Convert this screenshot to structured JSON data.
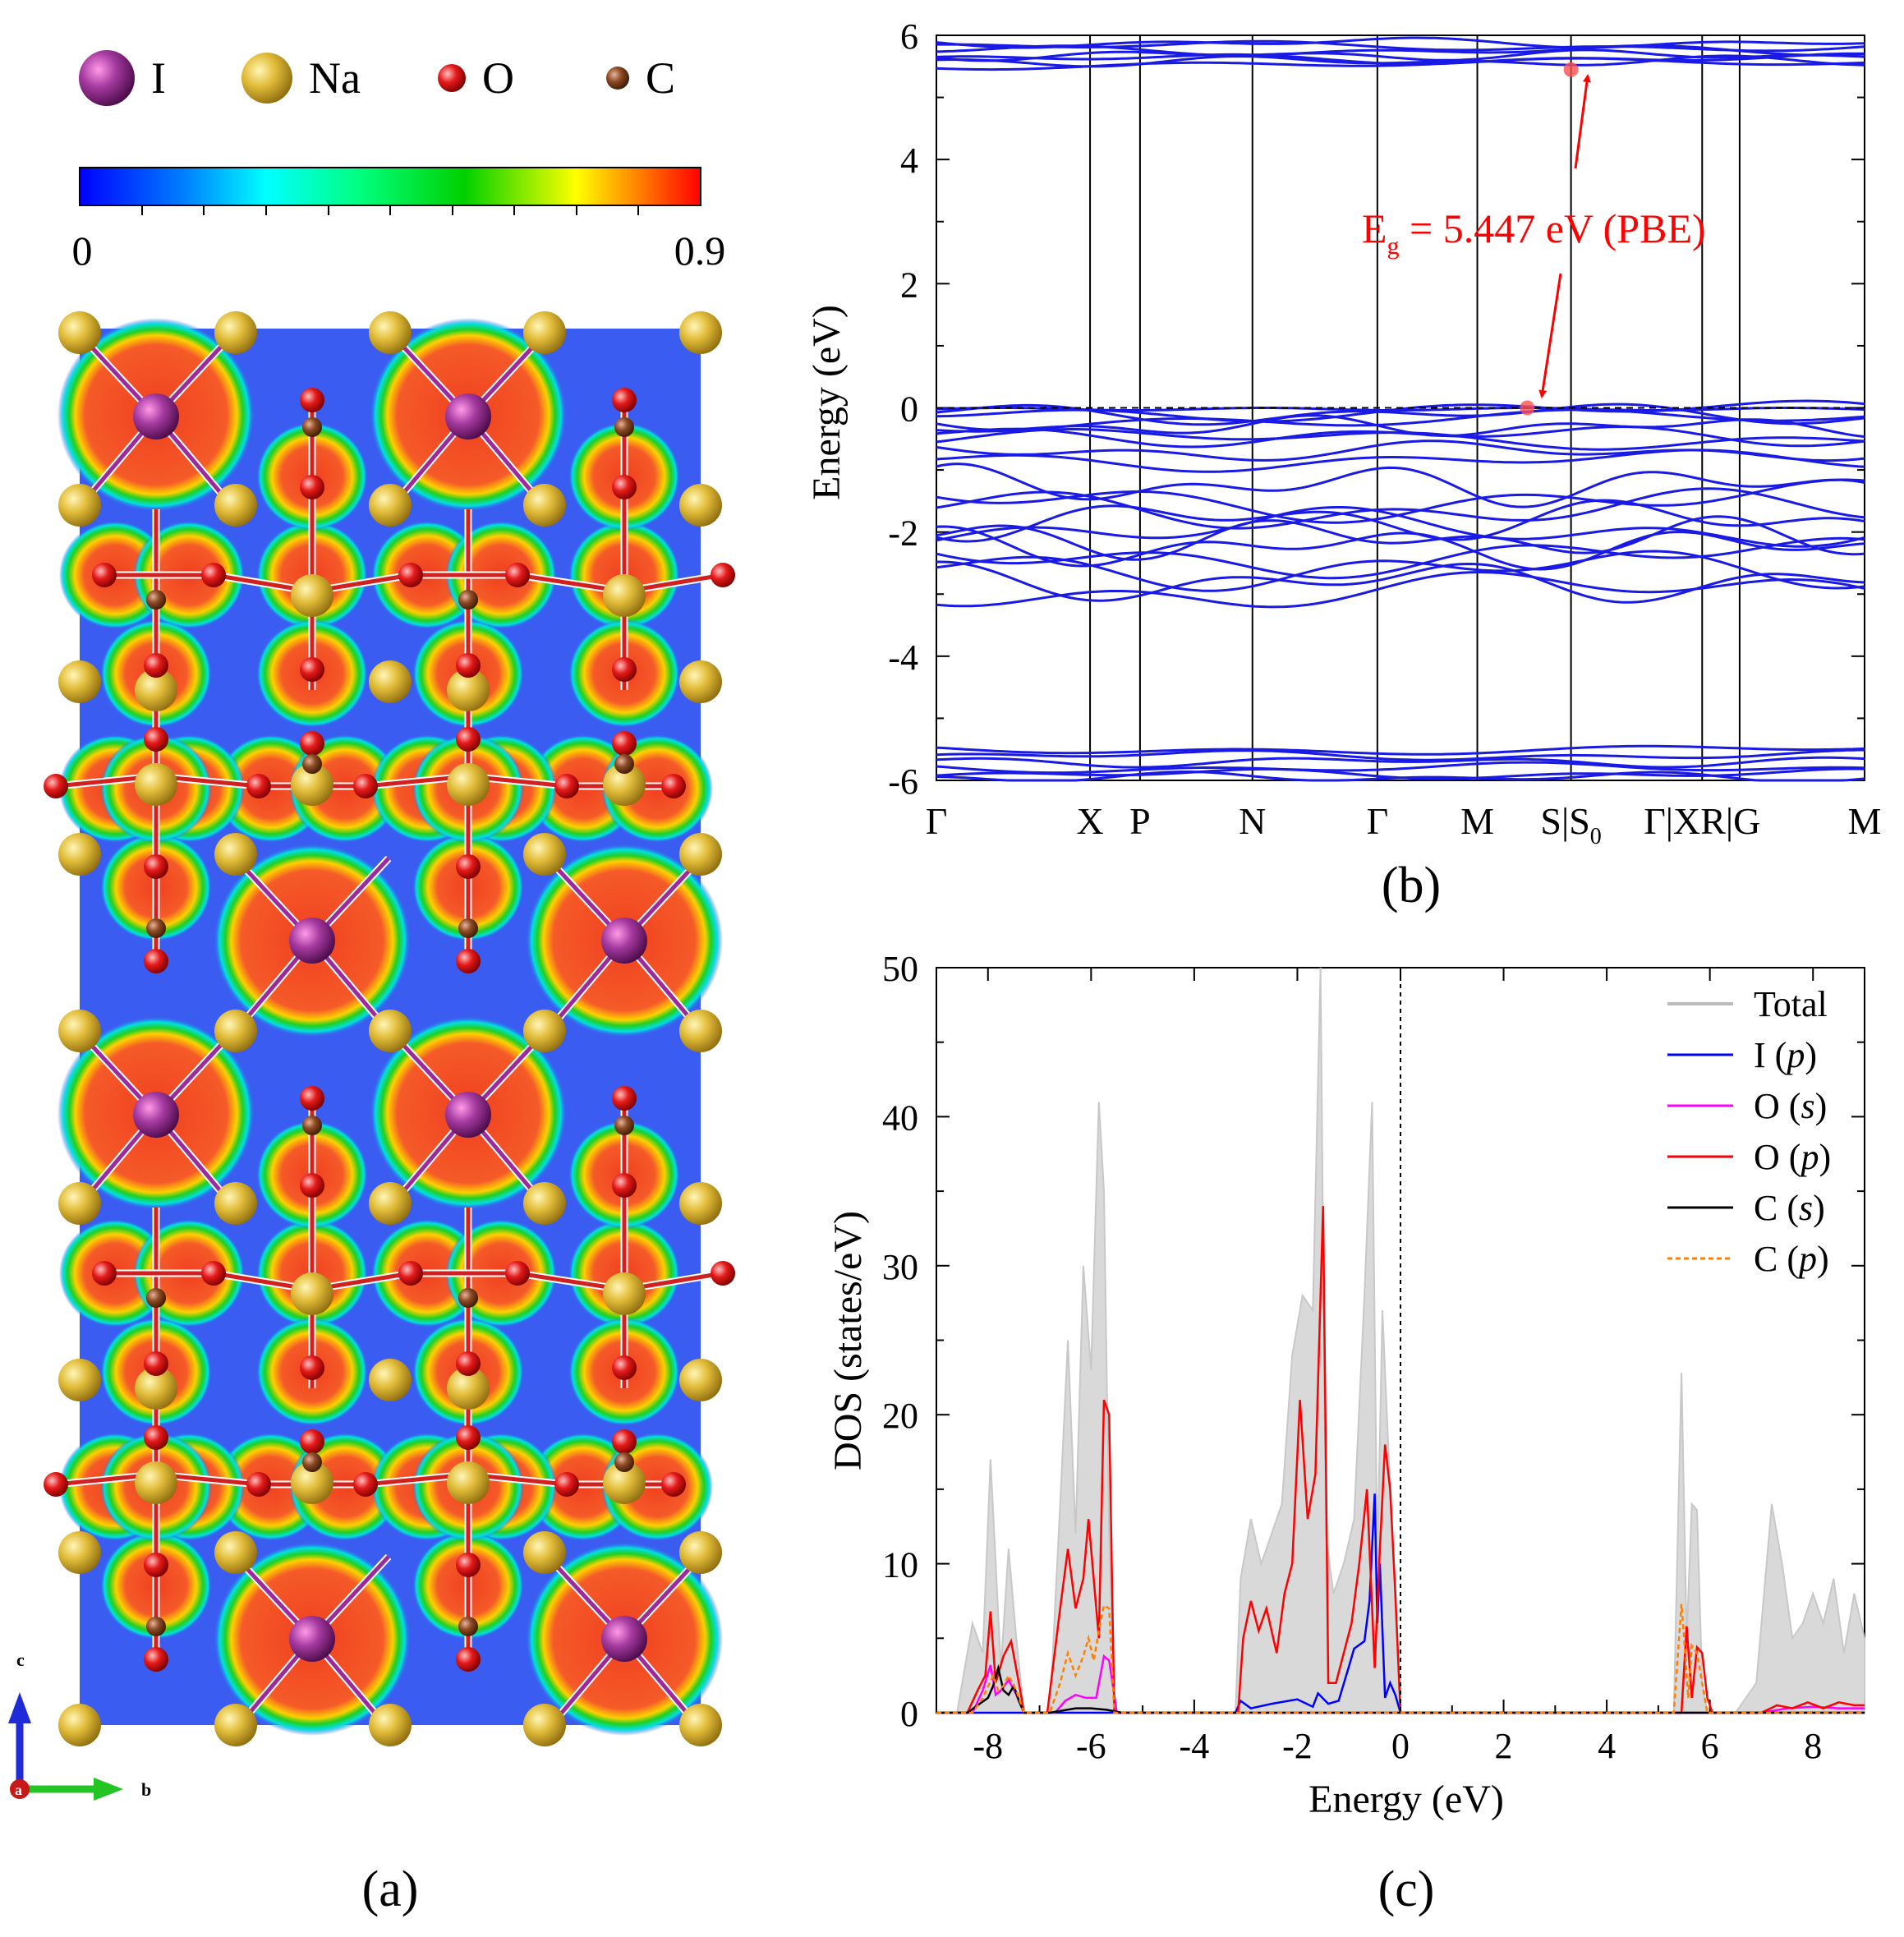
{
  "figure": {
    "panel_labels": [
      "(a)",
      "(b)",
      "(c)"
    ]
  },
  "panel_a": {
    "legend": [
      {
        "symbol": "I",
        "color": "#8e2a8e",
        "name": "iodine-atom-icon"
      },
      {
        "symbol": "Na",
        "color": "#e6bf3a",
        "name": "sodium-atom-icon"
      },
      {
        "symbol": "O",
        "color": "#e41b1b",
        "name": "oxygen-atom-icon"
      },
      {
        "symbol": "C",
        "color": "#8b4a24",
        "name": "carbon-atom-icon"
      }
    ],
    "colorbar": {
      "min_label": "0",
      "max_label": "0.9",
      "colors": [
        "#0000ff",
        "#0080ff",
        "#00ffff",
        "#00ff80",
        "#00d000",
        "#ffff00",
        "#ff8000",
        "#ff0000"
      ]
    },
    "axes": {
      "c_label": "c",
      "a_label": "a",
      "b_label": "b"
    },
    "map_colors": {
      "background": "#3a5cf0",
      "lobe_outer": "#00e0e0",
      "lobe_mid": "#20d020",
      "lobe_inner": "#ffd000",
      "lobe_core": "#f04020",
      "bond": "#ffffff"
    }
  },
  "chart_data": [
    {
      "id": "b",
      "type": "line",
      "title": "",
      "ylabel": "Energy (eV)",
      "xlabel": "",
      "ylim": [
        -6,
        6
      ],
      "yticks": [
        "-6",
        "-4",
        "-2",
        "0",
        "2",
        "4",
        "6"
      ],
      "kpath": [
        {
          "label": "Γ",
          "sub": "",
          "pos": 0
        },
        {
          "label": "X",
          "sub": "",
          "pos": 1.23
        },
        {
          "label": "P",
          "sub": "",
          "pos": 1.63
        },
        {
          "label": "N",
          "sub": "",
          "pos": 2.53
        },
        {
          "label": "Γ",
          "sub": "",
          "pos": 3.53
        },
        {
          "label": "M",
          "sub": "",
          "pos": 4.33
        },
        {
          "label": "S|S",
          "sub": "0",
          "pos": 5.08
        },
        {
          "label": "Γ|XR|G",
          "sub": "",
          "pos": 6.13
        },
        {
          "label": "M",
          "sub": "",
          "pos": 7.43
        }
      ],
      "extra_vlines": [
        6.43
      ],
      "xrange": [
        0,
        7.43
      ],
      "fermi_level": 0,
      "cbm": {
        "k": 5.08,
        "E": 5.447
      },
      "vbm": {
        "k": 4.73,
        "E": 0.0
      },
      "annotation": {
        "label_main": "E",
        "label_sub": "g",
        "label_rest": " = 5.447 eV (PBE)"
      },
      "band_groups": [
        {
          "name": "conduction",
          "values": [
            5.88,
            5.82,
            5.75,
            5.68,
            5.62,
            5.58,
            5.54
          ]
        },
        {
          "name": "valence-top",
          "values": [
            -0.02,
            -0.05,
            -0.1,
            -0.2,
            -0.3,
            -0.45,
            -0.5,
            -0.7,
            -0.85
          ]
        },
        {
          "name": "valence-mid",
          "values": [
            -1.25,
            -1.5,
            -1.65,
            -1.8,
            -1.95,
            -2.1,
            -2.25,
            -2.4,
            -2.6,
            -2.8,
            -2.95
          ]
        },
        {
          "name": "valence-low",
          "values": [
            -5.5,
            -5.6,
            -5.7,
            -5.8,
            -5.9,
            -5.95
          ]
        }
      ]
    },
    {
      "id": "c",
      "type": "line",
      "title": "",
      "xlabel": "Energy (eV)",
      "ylabel": "DOS (states/eV)",
      "xlim": [
        -9,
        9
      ],
      "ylim": [
        0,
        50
      ],
      "xticks": [
        "-8",
        "-6",
        "-4",
        "-2",
        "0",
        "2",
        "4",
        "6",
        "8"
      ],
      "yticks": [
        "0",
        "10",
        "20",
        "30",
        "40",
        "50"
      ],
      "legend": [
        {
          "label": "Total",
          "italic": "",
          "tail": "",
          "color": "#bbbbbb",
          "dash": ""
        },
        {
          "label": "I (",
          "italic": "p",
          "tail": ")",
          "color": "#0000ff",
          "dash": ""
        },
        {
          "label": "O (",
          "italic": "s",
          "tail": ")",
          "color": "#ff00ff",
          "dash": ""
        },
        {
          "label": "O (",
          "italic": "p",
          "tail": ")",
          "color": "#ff0000",
          "dash": ""
        },
        {
          "label": "C (",
          "italic": "s",
          "tail": ")",
          "color": "#000000",
          "dash": ""
        },
        {
          "label": "C (",
          "italic": "p",
          "tail": ")",
          "color": "#ff8000",
          "dash": "6,4"
        }
      ],
      "series": [
        {
          "name": "Total",
          "x": [
            -9,
            -8.6,
            -8.3,
            -8.1,
            -7.95,
            -7.85,
            -7.75,
            -7.6,
            -7.45,
            -7.3,
            -7.1,
            -6.8,
            -6.6,
            -6.45,
            -6.3,
            -6.15,
            -6,
            -5.85,
            -5.75,
            -5.65,
            -5.55,
            -5.45,
            -5.3,
            -3.2,
            -3.1,
            -2.9,
            -2.7,
            -2.5,
            -2.3,
            -2.1,
            -1.9,
            -1.7,
            -1.55,
            -1.45,
            -1.3,
            -1.1,
            -0.9,
            -0.7,
            -0.55,
            -0.45,
            -0.35,
            -0.2,
            -0.1,
            0,
            0.1,
            5.3,
            5.45,
            5.55,
            5.65,
            5.75,
            5.85,
            5.95,
            6.1,
            6.5,
            6.9,
            7.2,
            7.4,
            7.6,
            7.8,
            8,
            8.2,
            8.4,
            8.6,
            8.8,
            9
          ],
          "values": [
            0,
            0,
            6,
            4,
            17,
            10,
            3,
            11,
            5,
            0,
            0,
            0,
            14,
            25,
            12,
            30,
            23,
            41,
            35,
            12,
            0,
            0,
            0,
            0,
            9,
            13,
            10,
            12,
            14,
            24,
            28,
            27,
            50,
            12,
            8,
            10,
            13,
            28,
            41,
            10,
            27,
            15,
            8,
            0,
            0,
            0,
            22.8,
            5,
            14,
            13.6,
            2,
            0,
            0,
            0,
            2,
            14,
            10,
            5,
            6,
            8,
            6,
            9,
            4,
            8,
            5
          ]
        },
        {
          "name": "I (p)",
          "x": [
            -9,
            -3.2,
            -3.1,
            -2.9,
            -2.5,
            -2,
            -1.7,
            -1.6,
            -1.4,
            -1.2,
            -1,
            -0.9,
            -0.7,
            -0.6,
            -0.5,
            -0.45,
            -0.4,
            -0.3,
            -0.2,
            -0.1,
            0,
            9
          ],
          "values": [
            0,
            0,
            0.8,
            0.3,
            0.6,
            0.9,
            0.4,
            1.3,
            0.6,
            0.8,
            3.1,
            4.3,
            4.8,
            7.5,
            14.7,
            6,
            10,
            1,
            2,
            1.2,
            0,
            0
          ]
        },
        {
          "name": "O (s)",
          "x": [
            -9,
            -8.3,
            -8.1,
            -7.95,
            -7.85,
            -7.75,
            -7.6,
            -7.45,
            -7.3,
            -6.7,
            -6.5,
            -6.3,
            -6.1,
            -5.9,
            -5.75,
            -5.65,
            -5.5,
            -5.3,
            -3.2,
            -2,
            -0.5,
            0,
            7,
            7.5,
            8,
            8.5,
            9
          ],
          "values": [
            0,
            0,
            1.5,
            3.2,
            1.2,
            1.5,
            2.2,
            1.2,
            0,
            0,
            0.8,
            1.2,
            1,
            1,
            3.8,
            3.5,
            0,
            0,
            0,
            0,
            0,
            0,
            0,
            0.3,
            0.4,
            0.3,
            0.3
          ]
        },
        {
          "name": "O (p)",
          "x": [
            -9,
            -8.4,
            -8.2,
            -8.05,
            -7.95,
            -7.85,
            -7.7,
            -7.55,
            -7.4,
            -7.3,
            -6.85,
            -6.6,
            -6.45,
            -6.3,
            -6.15,
            -6.05,
            -5.95,
            -5.85,
            -5.75,
            -5.65,
            -5.55,
            -5.45,
            -3.15,
            -3.05,
            -2.9,
            -2.75,
            -2.6,
            -2.4,
            -2.25,
            -2.1,
            -1.95,
            -1.8,
            -1.65,
            -1.5,
            -1.4,
            -1.25,
            -1.1,
            -0.95,
            -0.8,
            -0.65,
            -0.5,
            -0.4,
            -0.3,
            -0.2,
            -0.1,
            0,
            5.45,
            5.55,
            5.65,
            5.75,
            5.85,
            5.95,
            6.05,
            7,
            7.3,
            7.6,
            7.9,
            8.2,
            8.5,
            8.8,
            9
          ],
          "values": [
            0,
            0,
            1.5,
            2.5,
            6.8,
            2,
            3.8,
            4.8,
            2,
            0,
            0,
            7,
            11,
            7,
            9,
            13,
            9,
            5,
            21,
            20,
            0,
            0,
            0,
            5,
            7.5,
            5.5,
            7,
            4,
            8,
            10,
            21,
            13,
            16,
            34,
            2,
            2,
            4,
            6,
            10,
            15,
            3,
            11,
            18,
            15,
            8,
            0,
            0,
            5.8,
            1,
            4.4,
            4,
            1,
            0,
            0,
            0.5,
            0.3,
            0.7,
            0.3,
            0.7,
            0.5,
            0.5
          ]
        },
        {
          "name": "C (s)",
          "x": [
            -9,
            -8.4,
            -8.2,
            -8,
            -7.9,
            -7.8,
            -7.7,
            -7.6,
            -7.5,
            -7.4,
            -7.3,
            -6.8,
            -6.3,
            -6,
            -5.7,
            -5.4,
            9
          ],
          "values": [
            0,
            0,
            0.5,
            1,
            1.8,
            3,
            1.5,
            1.2,
            1.8,
            0.8,
            0,
            0,
            0.3,
            0.3,
            0.2,
            0,
            0
          ]
        },
        {
          "name": "C (p)",
          "x": [
            -9,
            -8.3,
            -8.1,
            -7.9,
            -7.8,
            -7.7,
            -7.6,
            -7.45,
            -7.3,
            -6.8,
            -6.6,
            -6.45,
            -6.3,
            -6.15,
            -6.05,
            -5.95,
            -5.85,
            -5.75,
            -5.65,
            -5.55,
            -5.45,
            5.3,
            5.45,
            5.5,
            5.58,
            5.65,
            5.75,
            5.85,
            5.95,
            6.05,
            9
          ],
          "values": [
            0,
            0,
            1,
            2.5,
            1.5,
            1.8,
            2.5,
            1.5,
            0,
            0,
            2,
            4,
            2.5,
            3.8,
            5,
            3.5,
            5.5,
            7.2,
            7,
            0,
            0,
            0,
            7.3,
            5,
            1,
            4.5,
            4,
            2,
            0,
            0,
            0
          ]
        }
      ]
    }
  ]
}
